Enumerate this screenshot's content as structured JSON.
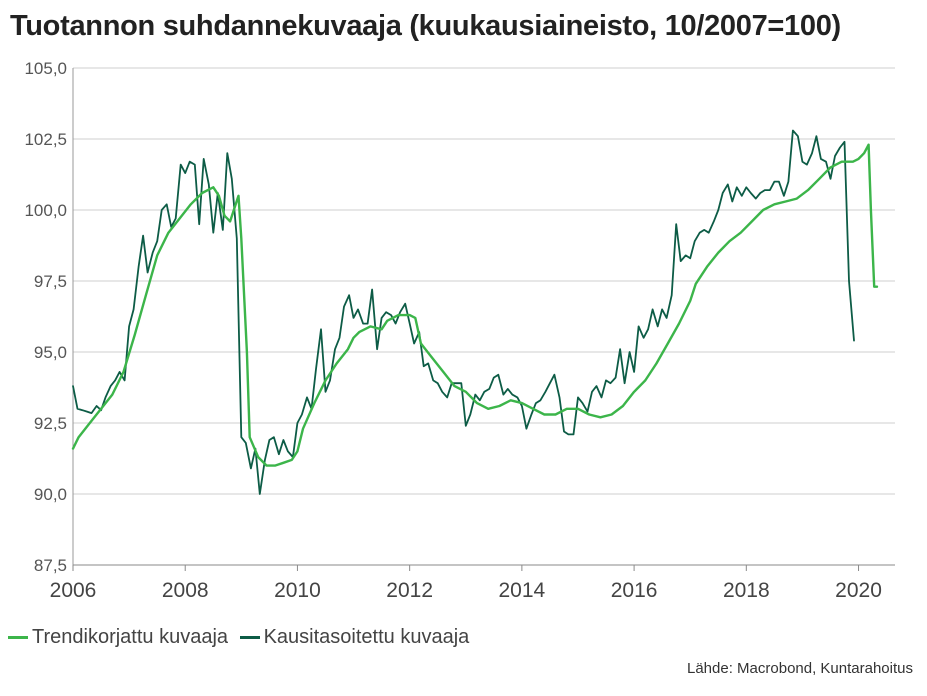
{
  "chart_data": {
    "type": "line",
    "title": "Tuotannon suhdannekuvaaja (kuukausiaineisto, 10/2007=100)",
    "xlabel": "",
    "ylabel": "",
    "xlim": [
      2006.0,
      2020.65
    ],
    "ylim": [
      87.5,
      105.0
    ],
    "y_ticks": [
      "105,0",
      "102,5",
      "100,0",
      "97,5",
      "95,0",
      "92,5",
      "90,0",
      "87,5"
    ],
    "x_ticks": [
      "2006",
      "2008",
      "2010",
      "2012",
      "2014",
      "2016",
      "2018",
      "2020"
    ],
    "grid": true,
    "legend_position": "bottom-left",
    "series": [
      {
        "name": "Trendikorjattu kuvaaja",
        "color": "#3cb54a",
        "points": [
          [
            2006.0,
            91.6
          ],
          [
            2006.1,
            92.0
          ],
          [
            2006.3,
            92.5
          ],
          [
            2006.5,
            93.0
          ],
          [
            2006.7,
            93.5
          ],
          [
            2006.9,
            94.3
          ],
          [
            2007.1,
            95.6
          ],
          [
            2007.3,
            97.0
          ],
          [
            2007.5,
            98.4
          ],
          [
            2007.7,
            99.2
          ],
          [
            2007.9,
            99.7
          ],
          [
            2008.1,
            100.2
          ],
          [
            2008.3,
            100.6
          ],
          [
            2008.5,
            100.8
          ],
          [
            2008.6,
            100.5
          ],
          [
            2008.7,
            99.8
          ],
          [
            2008.8,
            99.6
          ],
          [
            2008.9,
            100.2
          ],
          [
            2008.95,
            100.5
          ],
          [
            2009.0,
            99.0
          ],
          [
            2009.1,
            95.0
          ],
          [
            2009.15,
            92.0
          ],
          [
            2009.3,
            91.3
          ],
          [
            2009.45,
            91.0
          ],
          [
            2009.6,
            91.0
          ],
          [
            2009.75,
            91.1
          ],
          [
            2009.9,
            91.2
          ],
          [
            2010.0,
            91.5
          ],
          [
            2010.1,
            92.3
          ],
          [
            2010.3,
            93.2
          ],
          [
            2010.5,
            94.0
          ],
          [
            2010.7,
            94.6
          ],
          [
            2010.9,
            95.1
          ],
          [
            2011.0,
            95.5
          ],
          [
            2011.1,
            95.7
          ],
          [
            2011.3,
            95.9
          ],
          [
            2011.5,
            95.8
          ],
          [
            2011.6,
            96.1
          ],
          [
            2011.8,
            96.3
          ],
          [
            2012.0,
            96.3
          ],
          [
            2012.1,
            96.2
          ],
          [
            2012.2,
            95.3
          ],
          [
            2012.4,
            94.8
          ],
          [
            2012.6,
            94.3
          ],
          [
            2012.8,
            93.8
          ],
          [
            2013.0,
            93.6
          ],
          [
            2013.2,
            93.2
          ],
          [
            2013.4,
            93.0
          ],
          [
            2013.6,
            93.1
          ],
          [
            2013.8,
            93.3
          ],
          [
            2014.0,
            93.2
          ],
          [
            2014.2,
            93.0
          ],
          [
            2014.4,
            92.8
          ],
          [
            2014.6,
            92.8
          ],
          [
            2014.8,
            93.0
          ],
          [
            2015.0,
            93.0
          ],
          [
            2015.2,
            92.8
          ],
          [
            2015.4,
            92.7
          ],
          [
            2015.6,
            92.8
          ],
          [
            2015.8,
            93.1
          ],
          [
            2016.0,
            93.6
          ],
          [
            2016.2,
            94.0
          ],
          [
            2016.4,
            94.6
          ],
          [
            2016.6,
            95.3
          ],
          [
            2016.8,
            96.0
          ],
          [
            2017.0,
            96.8
          ],
          [
            2017.1,
            97.4
          ],
          [
            2017.3,
            98.0
          ],
          [
            2017.5,
            98.5
          ],
          [
            2017.7,
            98.9
          ],
          [
            2017.9,
            99.2
          ],
          [
            2018.1,
            99.6
          ],
          [
            2018.3,
            100.0
          ],
          [
            2018.5,
            100.2
          ],
          [
            2018.7,
            100.3
          ],
          [
            2018.9,
            100.4
          ],
          [
            2019.1,
            100.7
          ],
          [
            2019.3,
            101.1
          ],
          [
            2019.5,
            101.5
          ],
          [
            2019.7,
            101.7
          ],
          [
            2019.9,
            101.7
          ],
          [
            2020.0,
            101.8
          ],
          [
            2020.1,
            102.0
          ],
          [
            2020.18,
            102.3
          ],
          [
            2020.22,
            100.0
          ],
          [
            2020.28,
            97.3
          ],
          [
            2020.33,
            97.3
          ]
        ]
      },
      {
        "name": "Kausitasoitettu kuvaaja",
        "color": "#0d5c46",
        "points": [
          [
            2006.0,
            93.8
          ],
          [
            2006.08,
            93.0
          ],
          [
            2006.17,
            92.95
          ],
          [
            2006.25,
            92.9
          ],
          [
            2006.33,
            92.85
          ],
          [
            2006.42,
            93.1
          ],
          [
            2006.5,
            92.95
          ],
          [
            2006.58,
            93.4
          ],
          [
            2006.67,
            93.8
          ],
          [
            2006.75,
            94.0
          ],
          [
            2006.83,
            94.3
          ],
          [
            2006.92,
            94.0
          ],
          [
            2007.0,
            95.9
          ],
          [
            2007.08,
            96.5
          ],
          [
            2007.17,
            98.0
          ],
          [
            2007.25,
            99.1
          ],
          [
            2007.33,
            97.8
          ],
          [
            2007.42,
            98.5
          ],
          [
            2007.5,
            98.9
          ],
          [
            2007.58,
            100.0
          ],
          [
            2007.67,
            100.2
          ],
          [
            2007.75,
            99.4
          ],
          [
            2007.83,
            99.7
          ],
          [
            2007.92,
            101.6
          ],
          [
            2008.0,
            101.3
          ],
          [
            2008.08,
            101.7
          ],
          [
            2008.17,
            101.6
          ],
          [
            2008.25,
            99.5
          ],
          [
            2008.33,
            101.8
          ],
          [
            2008.42,
            100.9
          ],
          [
            2008.5,
            99.2
          ],
          [
            2008.58,
            100.6
          ],
          [
            2008.67,
            99.3
          ],
          [
            2008.75,
            102.0
          ],
          [
            2008.83,
            101.1
          ],
          [
            2008.92,
            99.0
          ],
          [
            2009.0,
            92.0
          ],
          [
            2009.08,
            91.8
          ],
          [
            2009.17,
            90.9
          ],
          [
            2009.25,
            91.6
          ],
          [
            2009.33,
            90.0
          ],
          [
            2009.42,
            91.2
          ],
          [
            2009.5,
            91.9
          ],
          [
            2009.58,
            92.0
          ],
          [
            2009.67,
            91.4
          ],
          [
            2009.75,
            91.9
          ],
          [
            2009.83,
            91.5
          ],
          [
            2009.92,
            91.3
          ],
          [
            2010.0,
            92.5
          ],
          [
            2010.08,
            92.8
          ],
          [
            2010.17,
            93.4
          ],
          [
            2010.25,
            93.0
          ],
          [
            2010.33,
            94.4
          ],
          [
            2010.42,
            95.8
          ],
          [
            2010.5,
            93.6
          ],
          [
            2010.58,
            94.0
          ],
          [
            2010.67,
            95.1
          ],
          [
            2010.75,
            95.5
          ],
          [
            2010.83,
            96.6
          ],
          [
            2010.92,
            97.0
          ],
          [
            2011.0,
            96.2
          ],
          [
            2011.08,
            96.5
          ],
          [
            2011.17,
            96.0
          ],
          [
            2011.25,
            96.0
          ],
          [
            2011.33,
            97.2
          ],
          [
            2011.42,
            95.1
          ],
          [
            2011.5,
            96.2
          ],
          [
            2011.58,
            96.4
          ],
          [
            2011.67,
            96.3
          ],
          [
            2011.75,
            96.0
          ],
          [
            2011.83,
            96.4
          ],
          [
            2011.92,
            96.7
          ],
          [
            2012.0,
            96.0
          ],
          [
            2012.08,
            95.3
          ],
          [
            2012.17,
            95.7
          ],
          [
            2012.25,
            94.5
          ],
          [
            2012.33,
            94.6
          ],
          [
            2012.42,
            94.0
          ],
          [
            2012.5,
            93.9
          ],
          [
            2012.58,
            93.6
          ],
          [
            2012.67,
            93.4
          ],
          [
            2012.75,
            93.9
          ],
          [
            2012.83,
            93.9
          ],
          [
            2012.92,
            93.9
          ],
          [
            2013.0,
            92.4
          ],
          [
            2013.08,
            92.8
          ],
          [
            2013.17,
            93.5
          ],
          [
            2013.25,
            93.3
          ],
          [
            2013.33,
            93.6
          ],
          [
            2013.42,
            93.7
          ],
          [
            2013.5,
            94.1
          ],
          [
            2013.58,
            94.2
          ],
          [
            2013.67,
            93.5
          ],
          [
            2013.75,
            93.7
          ],
          [
            2013.83,
            93.5
          ],
          [
            2013.92,
            93.4
          ],
          [
            2014.0,
            93.1
          ],
          [
            2014.08,
            92.3
          ],
          [
            2014.17,
            92.8
          ],
          [
            2014.25,
            93.2
          ],
          [
            2014.33,
            93.3
          ],
          [
            2014.42,
            93.6
          ],
          [
            2014.5,
            93.9
          ],
          [
            2014.58,
            94.2
          ],
          [
            2014.67,
            93.4
          ],
          [
            2014.75,
            92.2
          ],
          [
            2014.83,
            92.1
          ],
          [
            2014.92,
            92.1
          ],
          [
            2015.0,
            93.4
          ],
          [
            2015.08,
            93.2
          ],
          [
            2015.17,
            92.9
          ],
          [
            2015.25,
            93.6
          ],
          [
            2015.33,
            93.8
          ],
          [
            2015.42,
            93.4
          ],
          [
            2015.5,
            94.0
          ],
          [
            2015.58,
            93.9
          ],
          [
            2015.67,
            94.1
          ],
          [
            2015.75,
            95.1
          ],
          [
            2015.83,
            93.9
          ],
          [
            2015.92,
            95.0
          ],
          [
            2016.0,
            94.3
          ],
          [
            2016.08,
            95.9
          ],
          [
            2016.17,
            95.5
          ],
          [
            2016.25,
            95.8
          ],
          [
            2016.33,
            96.5
          ],
          [
            2016.42,
            95.9
          ],
          [
            2016.5,
            96.5
          ],
          [
            2016.58,
            96.2
          ],
          [
            2016.67,
            97.0
          ],
          [
            2016.75,
            99.5
          ],
          [
            2016.83,
            98.2
          ],
          [
            2016.92,
            98.4
          ],
          [
            2017.0,
            98.3
          ],
          [
            2017.08,
            98.9
          ],
          [
            2017.17,
            99.2
          ],
          [
            2017.25,
            99.3
          ],
          [
            2017.33,
            99.2
          ],
          [
            2017.42,
            99.6
          ],
          [
            2017.5,
            100.0
          ],
          [
            2017.58,
            100.6
          ],
          [
            2017.67,
            100.9
          ],
          [
            2017.75,
            100.3
          ],
          [
            2017.83,
            100.8
          ],
          [
            2017.92,
            100.5
          ],
          [
            2018.0,
            100.8
          ],
          [
            2018.08,
            100.6
          ],
          [
            2018.17,
            100.4
          ],
          [
            2018.25,
            100.6
          ],
          [
            2018.33,
            100.7
          ],
          [
            2018.42,
            100.7
          ],
          [
            2018.5,
            101.0
          ],
          [
            2018.58,
            101.0
          ],
          [
            2018.67,
            100.5
          ],
          [
            2018.75,
            101.0
          ],
          [
            2018.83,
            102.8
          ],
          [
            2018.92,
            102.6
          ],
          [
            2019.0,
            101.7
          ],
          [
            2019.08,
            101.6
          ],
          [
            2019.17,
            102.0
          ],
          [
            2019.25,
            102.6
          ],
          [
            2019.33,
            101.8
          ],
          [
            2019.42,
            101.7
          ],
          [
            2019.5,
            101.1
          ],
          [
            2019.58,
            101.9
          ],
          [
            2019.67,
            102.2
          ],
          [
            2019.75,
            102.4
          ],
          [
            2019.83,
            97.5
          ],
          [
            2019.92,
            95.4
          ]
        ]
      }
    ],
    "source": "Lähde: Macrobond, Kuntarahoitus"
  }
}
